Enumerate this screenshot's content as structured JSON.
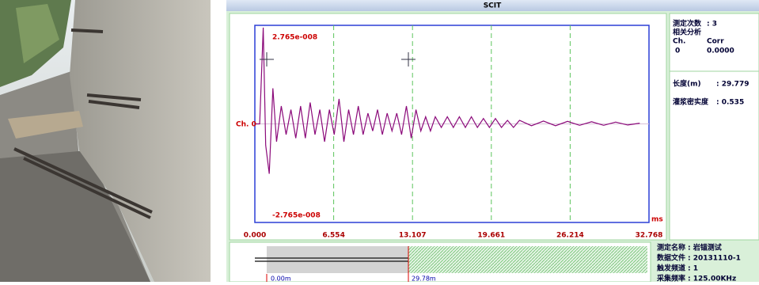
{
  "window": {
    "title": "SCIT"
  },
  "chart_data": {
    "type": "line",
    "x": [
      0,
      0.4,
      0.7,
      0.9,
      1.2,
      1.5,
      1.8,
      2.2,
      2.6,
      3.0,
      3.4,
      3.8,
      4.2,
      4.6,
      5.0,
      5.4,
      5.8,
      6.2,
      6.6,
      7.0,
      7.4,
      7.8,
      8.2,
      8.6,
      9.0,
      9.4,
      9.8,
      10.2,
      10.6,
      11.0,
      11.4,
      11.8,
      12.2,
      12.6,
      13.0,
      13.4,
      13.8,
      14.2,
      14.6,
      15.0,
      15.5,
      16.0,
      16.5,
      17.0,
      17.5,
      18.0,
      18.5,
      19.0,
      19.5,
      20.0,
      20.5,
      21.0,
      21.5,
      22.0,
      23.0,
      24.0,
      25.0,
      26.0,
      27.0,
      28.0,
      29.0,
      30.0,
      31.0,
      32.0
    ],
    "series": [
      {
        "name": "Ch. 0",
        "color": "#8b0a7a",
        "values": [
          0,
          0,
          2.7e-08,
          -6e-09,
          -1.4e-08,
          1e-08,
          -5e-09,
          5e-09,
          -3e-09,
          4e-09,
          -4e-09,
          5e-09,
          -4e-09,
          6e-09,
          -3e-09,
          4e-09,
          -5e-09,
          4e-09,
          -3e-09,
          7e-09,
          -5e-09,
          4e-09,
          -3e-09,
          5e-09,
          -3e-09,
          3e-09,
          -2e-09,
          4e-09,
          -3e-09,
          3e-09,
          -2e-09,
          3e-09,
          -3e-09,
          5e-09,
          -4e-09,
          4e-09,
          -2e-09,
          2e-09,
          -2e-09,
          2e-09,
          -1e-09,
          2e-09,
          -1e-09,
          2e-09,
          -1e-09,
          2e-09,
          -1e-09,
          1.5e-09,
          -1e-09,
          1.5e-09,
          -1e-09,
          1e-09,
          -1e-09,
          1e-09,
          -5e-10,
          8e-10,
          -5e-10,
          7e-10,
          -4e-10,
          6e-10,
          -4e-10,
          5e-10,
          -3e-10,
          2e-10
        ]
      }
    ],
    "xlim": [
      0,
      32.768
    ],
    "ylim": [
      -2.765e-08,
      2.765e-08
    ],
    "xticks": [
      {
        "value": 0,
        "label": "0.000"
      },
      6.554,
      13.107,
      19.661,
      26.214,
      32.768
    ],
    "yticks": [
      {
        "value": -2.765e-08,
        "label": "-2.765e-008"
      },
      {
        "value": 2.765e-08,
        "label": "2.765e-008"
      }
    ],
    "x_unit": "ms",
    "grid": true
  },
  "info": {
    "top": [
      {
        "label": "测定次数",
        "value": ": 3"
      }
    ],
    "corr_title": "相关分析",
    "corr_header": [
      "Ch.",
      "Corr"
    ],
    "corr_row": [
      "0",
      "0.0000"
    ],
    "results": [
      {
        "label": "长度(m)",
        "value": ": 29.779"
      },
      {
        "label": "灌浆密实度",
        "value": ": 0.535"
      }
    ]
  },
  "bottom": {
    "start_label": "0.00m",
    "end_label": "29.78m",
    "meta": [
      {
        "label": "测定名称",
        "value": ": 岩锚测试"
      },
      {
        "label": "数据文件",
        "value": ": 20131110-1"
      },
      {
        "label": "触发频道",
        "value": ": 1"
      },
      {
        "label": "采集频率",
        "value": ":   125.00KHz"
      }
    ]
  }
}
